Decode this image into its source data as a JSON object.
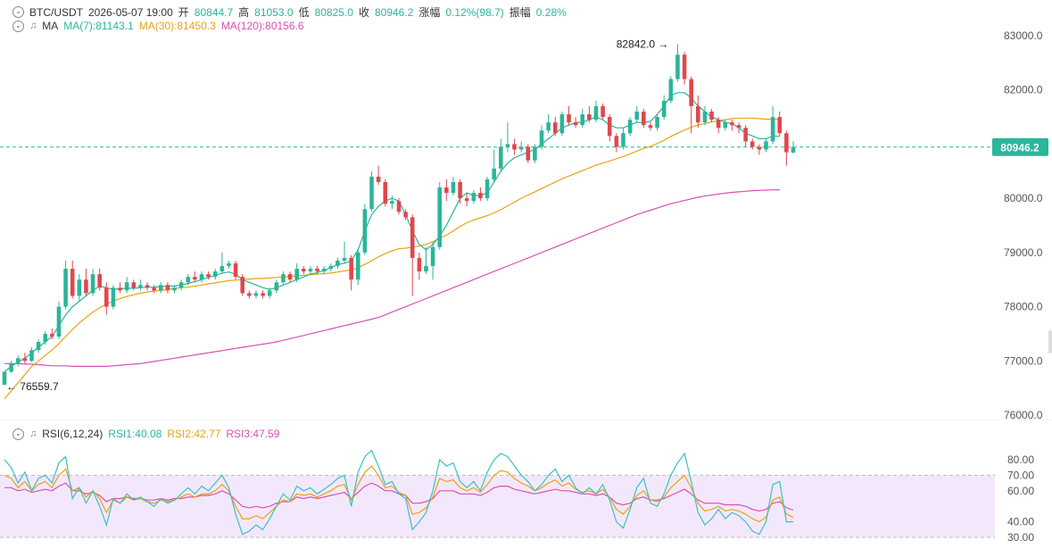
{
  "header": {
    "symbol": "BTC/USDT",
    "datetime": "2026-05-07 19:00",
    "open_label": "开",
    "open": "80844.7",
    "high_label": "高",
    "high": "81053.0",
    "low_label": "低",
    "low": "80825.0",
    "close_label": "收",
    "close": "80946.2",
    "change_label": "涨幅",
    "change": "0.12%(98.7)",
    "amplitude_label": "振幅",
    "amplitude": "0.28%"
  },
  "ma_legend": {
    "label": "MA",
    "ma7": "MA(7):81143.1",
    "ma30": "MA(30):81450.3",
    "ma120": "MA(120):80156.6"
  },
  "rsi_legend": {
    "label": "RSI(6,12,24)",
    "rsi1": "RSI1:40.08",
    "rsi2": "RSI2:42.77",
    "rsi3": "RSI3:47.59"
  },
  "colors": {
    "up": "#2bb59a",
    "down": "#e0474c",
    "ma7": "#2bb59a",
    "ma30": "#e8a317",
    "ma120": "#d94fb5",
    "rsi1": "#39c2c4",
    "rsi2": "#e8a317",
    "rsi3": "#d94fb5",
    "rsi_band": "#f3e8fb",
    "last_price_line": "#2bb59a"
  },
  "chart_data": {
    "type": "candlestick",
    "price_axis": {
      "ticks": [
        "83000.0",
        "82000.0",
        "81000.0",
        "80000.0",
        "79000.0",
        "78000.0",
        "77000.0",
        "76000.0"
      ],
      "ylim": [
        75700,
        83650
      ]
    },
    "last_price": 80946.2,
    "last_price_label": "80946.2",
    "high_marker": {
      "value": 82842.0,
      "label": "82842.0"
    },
    "low_marker": {
      "value": 76559.7,
      "label": "76559.7"
    },
    "rsi_axis": {
      "ticks": [
        "80.00",
        "70.00",
        "60.00",
        "40.00",
        "30.00"
      ],
      "band": [
        30,
        70
      ],
      "ylim": [
        27,
        90
      ]
    },
    "candles": [
      [
        76559.7,
        76800.0,
        76800.0,
        76559.7
      ],
      [
        76800.0,
        76950.0,
        77000.0,
        76780.0
      ],
      [
        76950.0,
        77050.0,
        77100.0,
        76900.0
      ],
      [
        77050.0,
        77000.0,
        77150.0,
        76950.0
      ],
      [
        77000.0,
        77200.0,
        77250.0,
        76980.0
      ],
      [
        77200.0,
        77350.0,
        77400.0,
        77150.0
      ],
      [
        77350.0,
        77500.0,
        77550.0,
        77300.0
      ],
      [
        77500.0,
        77450.0,
        77600.0,
        77400.0
      ],
      [
        77450.0,
        78000.0,
        78100.0,
        77400.0
      ],
      [
        78000.0,
        78700.0,
        78850.0,
        77950.0
      ],
      [
        78700.0,
        78200.0,
        78850.0,
        78150.0
      ],
      [
        78200.0,
        78500.0,
        78600.0,
        78100.0
      ],
      [
        78500.0,
        78250.0,
        78700.0,
        78200.0
      ],
      [
        78250.0,
        78600.0,
        78700.0,
        78200.0
      ],
      [
        78600.0,
        78350.0,
        78700.0,
        78300.0
      ],
      [
        78350.0,
        78000.0,
        78450.0,
        77850.0
      ],
      [
        78000.0,
        78350.0,
        78400.0,
        77950.0
      ],
      [
        78350.0,
        78300.0,
        78450.0,
        78250.0
      ],
      [
        78300.0,
        78450.0,
        78550.0,
        78250.0
      ],
      [
        78450.0,
        78350.0,
        78500.0,
        78300.0
      ],
      [
        78350.0,
        78400.0,
        78500.0,
        78300.0
      ],
      [
        78400.0,
        78350.0,
        78450.0,
        78300.0
      ],
      [
        78350.0,
        78300.0,
        78400.0,
        78250.0
      ],
      [
        78300.0,
        78400.0,
        78450.0,
        78250.0
      ],
      [
        78400.0,
        78300.0,
        78450.0,
        78250.0
      ],
      [
        78300.0,
        78350.0,
        78400.0,
        78250.0
      ],
      [
        78350.0,
        78450.0,
        78500.0,
        78300.0
      ],
      [
        78450.0,
        78550.0,
        78600.0,
        78400.0
      ],
      [
        78550.0,
        78500.0,
        78650.0,
        78450.0
      ],
      [
        78500.0,
        78600.0,
        78650.0,
        78450.0
      ],
      [
        78600.0,
        78550.0,
        78650.0,
        78500.0
      ],
      [
        78550.0,
        78650.0,
        78700.0,
        78500.0
      ],
      [
        78650.0,
        78750.0,
        79000.0,
        78600.0
      ],
      [
        78750.0,
        78800.0,
        78850.0,
        78700.0
      ],
      [
        78800.0,
        78550.0,
        78850.0,
        78500.0
      ],
      [
        78550.0,
        78250.0,
        78600.0,
        78200.0
      ],
      [
        78250.0,
        78200.0,
        78300.0,
        78150.0
      ],
      [
        78200.0,
        78250.0,
        78300.0,
        78150.0
      ],
      [
        78250.0,
        78200.0,
        78300.0,
        78150.0
      ],
      [
        78200.0,
        78300.0,
        78350.0,
        78150.0
      ],
      [
        78300.0,
        78450.0,
        78500.0,
        78250.0
      ],
      [
        78450.0,
        78600.0,
        78650.0,
        78400.0
      ],
      [
        78600.0,
        78500.0,
        78650.0,
        78450.0
      ],
      [
        78500.0,
        78700.0,
        78800.0,
        78450.0
      ],
      [
        78700.0,
        78650.0,
        78750.0,
        78600.0
      ],
      [
        78650.0,
        78700.0,
        78750.0,
        78600.0
      ],
      [
        78700.0,
        78650.0,
        78750.0,
        78600.0
      ],
      [
        78650.0,
        78700.0,
        78750.0,
        78600.0
      ],
      [
        78700.0,
        78750.0,
        78800.0,
        78650.0
      ],
      [
        78750.0,
        78850.0,
        78900.0,
        78700.0
      ],
      [
        78850.0,
        78900.0,
        79200.0,
        78800.0
      ],
      [
        78900.0,
        78500.0,
        78950.0,
        78300.0
      ],
      [
        78500.0,
        79000.0,
        79050.0,
        78400.0
      ],
      [
        79000.0,
        79800.0,
        79900.0,
        78950.0
      ],
      [
        79800.0,
        80400.0,
        80500.0,
        79750.0
      ],
      [
        80400.0,
        80300.0,
        80600.0,
        80250.0
      ],
      [
        80300.0,
        79900.0,
        80350.0,
        79850.0
      ],
      [
        79900.0,
        79950.0,
        80050.0,
        79800.0
      ],
      [
        79950.0,
        79750.0,
        80000.0,
        79700.0
      ],
      [
        79750.0,
        79650.0,
        79800.0,
        79600.0
      ],
      [
        79650.0,
        78900.0,
        79700.0,
        78200.0
      ],
      [
        78900.0,
        78650.0,
        79000.0,
        78500.0
      ],
      [
        78650.0,
        78750.0,
        79100.0,
        78600.0
      ],
      [
        78750.0,
        79100.0,
        79200.0,
        78500.0
      ],
      [
        79100.0,
        80200.0,
        80300.0,
        79050.0
      ],
      [
        80200.0,
        80100.0,
        80350.0,
        79950.0
      ],
      [
        80100.0,
        80300.0,
        80400.0,
        80050.0
      ],
      [
        80300.0,
        80000.0,
        80350.0,
        79900.0
      ],
      [
        80000.0,
        79950.0,
        80100.0,
        79850.0
      ],
      [
        79950.0,
        80100.0,
        80150.0,
        79900.0
      ],
      [
        80100.0,
        80000.0,
        80200.0,
        79950.0
      ],
      [
        80000.0,
        80350.0,
        80400.0,
        79950.0
      ],
      [
        80350.0,
        80550.0,
        80900.0,
        80300.0
      ],
      [
        80550.0,
        80950.0,
        81100.0,
        80500.0
      ],
      [
        80950.0,
        81000.0,
        81400.0,
        80850.0
      ],
      [
        81000.0,
        80900.0,
        81100.0,
        80800.0
      ],
      [
        80900.0,
        80950.0,
        81050.0,
        80850.0
      ],
      [
        80950.0,
        80700.0,
        81000.0,
        80650.0
      ],
      [
        80700.0,
        80950.0,
        81000.0,
        80650.0
      ],
      [
        80950.0,
        81250.0,
        81350.0,
        80900.0
      ],
      [
        81250.0,
        81400.0,
        81550.0,
        81200.0
      ],
      [
        81400.0,
        81200.0,
        81500.0,
        81150.0
      ],
      [
        81200.0,
        81550.0,
        81600.0,
        81150.0
      ],
      [
        81550.0,
        81400.0,
        81700.0,
        81350.0
      ],
      [
        81400.0,
        81350.0,
        81500.0,
        81300.0
      ],
      [
        81350.0,
        81550.0,
        81650.0,
        81300.0
      ],
      [
        81550.0,
        81450.0,
        81700.0,
        81400.0
      ],
      [
        81450.0,
        81700.0,
        81800.0,
        81400.0
      ],
      [
        81700.0,
        81500.0,
        81750.0,
        81450.0
      ],
      [
        81500.0,
        81150.0,
        81550.0,
        81050.0
      ],
      [
        81150.0,
        80950.0,
        81200.0,
        80850.0
      ],
      [
        80950.0,
        81200.0,
        81300.0,
        80900.0
      ],
      [
        81200.0,
        81450.0,
        81500.0,
        81150.0
      ],
      [
        81450.0,
        81600.0,
        81700.0,
        81400.0
      ],
      [
        81600.0,
        81350.0,
        81650.0,
        81300.0
      ],
      [
        81350.0,
        81300.0,
        81400.0,
        81250.0
      ],
      [
        81300.0,
        81500.0,
        81550.0,
        81250.0
      ],
      [
        81500.0,
        81800.0,
        81900.0,
        81450.0
      ],
      [
        81800.0,
        82200.0,
        82250.0,
        81750.0
      ],
      [
        82200.0,
        82650.0,
        82842.0,
        82150.0
      ],
      [
        82650.0,
        82200.0,
        82700.0,
        82100.0
      ],
      [
        82200.0,
        81700.0,
        82250.0,
        81200.0
      ],
      [
        81700.0,
        81400.0,
        81900.0,
        81300.0
      ],
      [
        81400.0,
        81600.0,
        81700.0,
        81350.0
      ],
      [
        81600.0,
        81450.0,
        81650.0,
        81400.0
      ],
      [
        81450.0,
        81300.0,
        81500.0,
        81200.0
      ],
      [
        81300.0,
        81400.0,
        81450.0,
        81250.0
      ],
      [
        81400.0,
        81350.0,
        81450.0,
        81250.0
      ],
      [
        81350.0,
        81300.0,
        81400.0,
        81200.0
      ],
      [
        81300.0,
        81050.0,
        81350.0,
        80950.0
      ],
      [
        81050.0,
        80950.0,
        81100.0,
        80900.0
      ],
      [
        80950.0,
        80900.0,
        81000.0,
        80800.0
      ],
      [
        80900.0,
        81050.0,
        81100.0,
        80850.0
      ],
      [
        81050.0,
        81500.0,
        81700.0,
        81000.0
      ],
      [
        81500.0,
        81200.0,
        81600.0,
        81150.0
      ],
      [
        81200.0,
        80850.0,
        81250.0,
        80600.0
      ],
      [
        80844.7,
        80946.2,
        81053.0,
        80825.0
      ]
    ],
    "ma7": [
      76800,
      76900,
      76980,
      77050,
      77150,
      77250,
      77350,
      77450,
      77650,
      77850,
      78000,
      78100,
      78200,
      78300,
      78380,
      78350,
      78320,
      78330,
      78340,
      78340,
      78350,
      78360,
      78360,
      78370,
      78380,
      78380,
      78400,
      78430,
      78460,
      78500,
      78540,
      78580,
      78620,
      78640,
      78600,
      78500,
      78450,
      78400,
      78350,
      78320,
      78350,
      78400,
      78450,
      78500,
      78550,
      78600,
      78630,
      78670,
      78720,
      78780,
      78800,
      78850,
      79050,
      79400,
      79700,
      79850,
      79950,
      80000,
      79950,
      79700,
      79400,
      79150,
      79050,
      79150,
      79300,
      79500,
      79750,
      80000,
      80100,
      80050,
      80050,
      80100,
      80300,
      80500,
      80650,
      80750,
      80800,
      80850,
      80900,
      81000,
      81100,
      81200,
      81300,
      81350,
      81400,
      81400,
      81450,
      81500,
      81450,
      81350,
      81300,
      81300,
      81350,
      81400,
      81400,
      81420,
      81550,
      81700,
      81900,
      81950,
      81950,
      81850,
      81700,
      81600,
      81500,
      81450,
      81400,
      81380,
      81300,
      81200,
      81150,
      81100,
      81100,
      81150,
      81143.1
    ],
    "ma30": [
      76300,
      76450,
      76600,
      76750,
      76900,
      77000,
      77100,
      77200,
      77320,
      77450,
      77580,
      77700,
      77800,
      77900,
      77980,
      78050,
      78100,
      78150,
      78190,
      78220,
      78250,
      78270,
      78290,
      78300,
      78320,
      78340,
      78350,
      78360,
      78380,
      78400,
      78420,
      78440,
      78460,
      78480,
      78490,
      78500,
      78510,
      78520,
      78520,
      78530,
      78540,
      78550,
      78560,
      78570,
      78580,
      78590,
      78600,
      78610,
      78620,
      78640,
      78660,
      78680,
      78720,
      78780,
      78850,
      78920,
      78980,
      79030,
      79070,
      79080,
      79100,
      79120,
      79150,
      79200,
      79260,
      79320,
      79400,
      79480,
      79550,
      79600,
      79640,
      79680,
      79730,
      79790,
      79860,
      79930,
      80000,
      80060,
      80120,
      80180,
      80240,
      80300,
      80360,
      80410,
      80460,
      80510,
      80560,
      80610,
      80650,
      80690,
      80730,
      80770,
      80820,
      80870,
      80920,
      80960,
      81010,
      81070,
      81140,
      81200,
      81260,
      81310,
      81350,
      81380,
      81410,
      81430,
      81450,
      81470,
      81480,
      81480,
      81480,
      81470,
      81460,
      81460,
      81450.3
    ],
    "ma120": [
      76950,
      76950,
      76950,
      76940,
      76940,
      76930,
      76920,
      76910,
      76910,
      76910,
      76900,
      76900,
      76900,
      76900,
      76900,
      76900,
      76910,
      76920,
      76930,
      76940,
      76950,
      76970,
      76990,
      77010,
      77030,
      77050,
      77070,
      77090,
      77110,
      77130,
      77150,
      77170,
      77190,
      77210,
      77230,
      77250,
      77270,
      77290,
      77310,
      77330,
      77350,
      77380,
      77410,
      77440,
      77470,
      77500,
      77530,
      77560,
      77590,
      77620,
      77650,
      77680,
      77710,
      77740,
      77770,
      77800,
      77850,
      77900,
      77950,
      78000,
      78050,
      78100,
      78150,
      78200,
      78250,
      78300,
      78350,
      78400,
      78450,
      78500,
      78550,
      78600,
      78650,
      78700,
      78750,
      78800,
      78850,
      78900,
      78950,
      79000,
      79050,
      79100,
      79150,
      79200,
      79250,
      79300,
      79350,
      79400,
      79450,
      79500,
      79550,
      79600,
      79650,
      79700,
      79740,
      79780,
      79820,
      79860,
      79900,
      79930,
      79960,
      79990,
      80020,
      80040,
      80060,
      80080,
      80095,
      80110,
      80120,
      80130,
      80140,
      80145,
      80150,
      80155,
      80156.6
    ],
    "rsi1": [
      80,
      75,
      65,
      72,
      60,
      68,
      70,
      65,
      78,
      82,
      55,
      62,
      52,
      60,
      50,
      38,
      55,
      52,
      58,
      54,
      56,
      53,
      50,
      55,
      52,
      54,
      58,
      62,
      58,
      63,
      60,
      65,
      70,
      62,
      45,
      32,
      34,
      38,
      35,
      42,
      50,
      58,
      54,
      63,
      60,
      62,
      58,
      61,
      64,
      68,
      70,
      50,
      72,
      82,
      86,
      76,
      64,
      66,
      58,
      55,
      35,
      40,
      46,
      60,
      80,
      76,
      78,
      66,
      62,
      66,
      60,
      72,
      80,
      84,
      82,
      76,
      70,
      66,
      60,
      64,
      70,
      74,
      66,
      70,
      62,
      58,
      62,
      58,
      64,
      54,
      40,
      36,
      48,
      62,
      68,
      52,
      50,
      58,
      70,
      78,
      84,
      66,
      46,
      38,
      42,
      48,
      42,
      46,
      44,
      40,
      34,
      32,
      40,
      64,
      66,
      40,
      40.08
    ],
    "rsi2": [
      70,
      68,
      62,
      66,
      60,
      64,
      66,
      62,
      70,
      74,
      60,
      62,
      56,
      60,
      55,
      46,
      54,
      52,
      56,
      54,
      55,
      53,
      52,
      54,
      53,
      54,
      56,
      58,
      56,
      58,
      58,
      60,
      64,
      60,
      50,
      42,
      42,
      44,
      42,
      46,
      50,
      54,
      53,
      58,
      57,
      58,
      56,
      58,
      60,
      63,
      64,
      54,
      64,
      72,
      76,
      70,
      62,
      63,
      59,
      57,
      45,
      46,
      49,
      56,
      68,
      66,
      67,
      62,
      60,
      62,
      59,
      64,
      70,
      73,
      72,
      68,
      65,
      63,
      60,
      62,
      65,
      67,
      63,
      65,
      61,
      59,
      60,
      58,
      61,
      56,
      48,
      45,
      50,
      57,
      60,
      54,
      53,
      56,
      62,
      66,
      70,
      62,
      52,
      47,
      48,
      50,
      47,
      48,
      47,
      45,
      42,
      40,
      43,
      54,
      56,
      45,
      42.77
    ],
    "rsi3": [
      62,
      62,
      60,
      61,
      59,
      60,
      61,
      60,
      63,
      65,
      60,
      60,
      58,
      59,
      57,
      53,
      55,
      55,
      56,
      55,
      55,
      54,
      54,
      55,
      54,
      55,
      55,
      56,
      56,
      57,
      57,
      58,
      60,
      58,
      54,
      50,
      49,
      50,
      49,
      50,
      52,
      53,
      53,
      56,
      55,
      56,
      55,
      56,
      57,
      58,
      59,
      55,
      59,
      63,
      65,
      63,
      60,
      60,
      58,
      57,
      52,
      52,
      53,
      55,
      60,
      60,
      60,
      58,
      58,
      58,
      57,
      59,
      62,
      63,
      63,
      61,
      60,
      59,
      58,
      59,
      60,
      61,
      60,
      60,
      59,
      58,
      58,
      57,
      58,
      56,
      52,
      51,
      52,
      55,
      56,
      54,
      54,
      55,
      57,
      59,
      61,
      58,
      54,
      52,
      52,
      52,
      51,
      51,
      51,
      50,
      48,
      47,
      48,
      52,
      53,
      49,
      47.59
    ]
  }
}
